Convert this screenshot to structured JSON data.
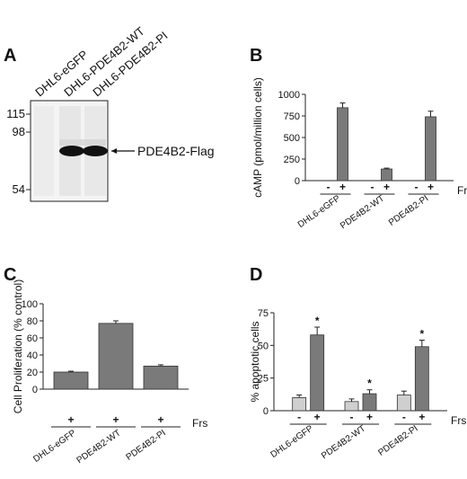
{
  "figure": {
    "panels": [
      {
        "letter": "A",
        "type": "blot",
        "lanes": [
          "DHL6-eGFP",
          "DHL6-PDE4B2-WT",
          "DHL6-PDE4B2-PI"
        ],
        "mw_markers": [
          "115",
          "98",
          "54"
        ],
        "band_label": "PDE4B2-Flag",
        "band_intensity": [
          0.0,
          1.0,
          1.0
        ]
      }
    ]
  },
  "chart_data": [
    {
      "panel": "B",
      "type": "bar",
      "ylabel": "cAMP (pmol/million cells)",
      "ylim": [
        0,
        1000
      ],
      "yticks": [
        "0",
        "250",
        "500",
        "750",
        "1000"
      ],
      "groups": [
        "DHL6-eGFP",
        "PDE4B2-WT",
        "PDE4B2-PI"
      ],
      "signs": [
        "-",
        "+"
      ],
      "signs_label": "Frs",
      "series": [
        {
          "sign": "-",
          "values": [
            0,
            0,
            0
          ],
          "errors": [
            0,
            0,
            0
          ],
          "color": "#cfcfcf"
        },
        {
          "sign": "+",
          "values": [
            845,
            135,
            740
          ],
          "errors": [
            55,
            10,
            65
          ],
          "color": "#7a7a7a"
        }
      ],
      "grid": false
    },
    {
      "panel": "C",
      "type": "bar",
      "ylabel": "Cell Proliferation (% control)",
      "ylim": [
        0,
        100
      ],
      "yticks": [
        "0",
        "20",
        "40",
        "60",
        "80",
        "100"
      ],
      "groups": [
        "DHL6-eGFP",
        "PDE4B2-WT",
        "PDE4B2-PI"
      ],
      "signs": [
        "+"
      ],
      "signs_label": "Frs",
      "series": [
        {
          "sign": "+",
          "values": [
            20,
            77,
            27
          ],
          "errors": [
            1,
            3,
            1.5
          ],
          "color": "#7a7a7a"
        }
      ],
      "grid": false
    },
    {
      "panel": "D",
      "type": "bar",
      "ylabel": "% apoptotic cells",
      "ylim": [
        0,
        75
      ],
      "yticks": [
        "0",
        "25",
        "50",
        "75"
      ],
      "groups": [
        "DHL6-eGFP",
        "PDE4B2-WT",
        "PDE4B2-PI"
      ],
      "signs": [
        "-",
        "+"
      ],
      "signs_label": "Frs",
      "series": [
        {
          "sign": "-",
          "values": [
            10,
            7,
            12
          ],
          "errors": [
            2,
            2,
            3
          ],
          "color": "#cfcfcf"
        },
        {
          "sign": "+",
          "values": [
            58,
            13,
            49
          ],
          "errors": [
            6,
            3,
            5
          ],
          "color": "#7a7a7a"
        }
      ],
      "significance": [
        "*",
        "*",
        "*"
      ],
      "grid": false
    }
  ]
}
